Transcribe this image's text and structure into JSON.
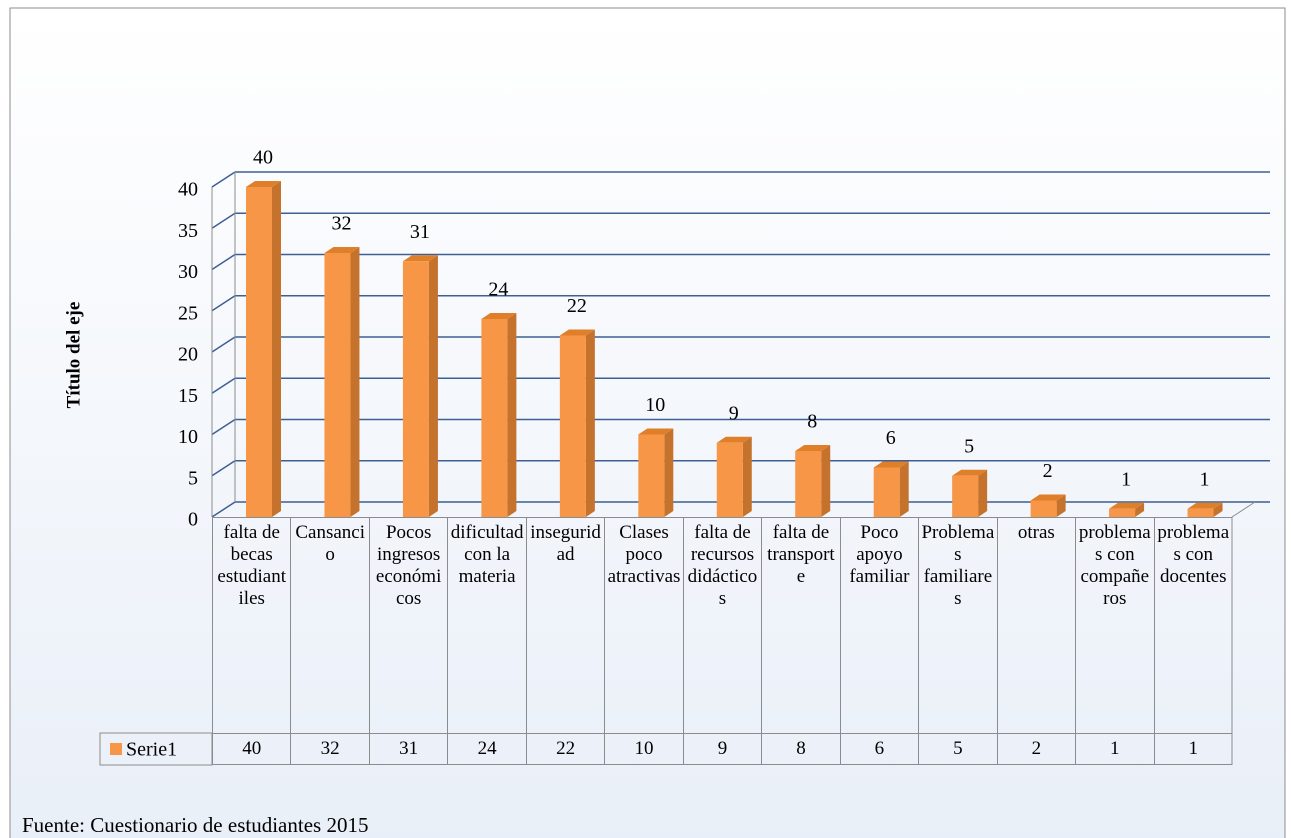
{
  "chart_data": {
    "type": "bar",
    "yaxis_title": "Título del eje",
    "categories": [
      "falta de becas estudiantiles",
      "Cansancio",
      "Pocos ingresos económicos",
      "dificultad con la materia",
      "inseguridad",
      "Clases poco atractivas",
      "falta de recursos didácticos",
      "falta de transporte",
      "Poco apoyo familiar",
      "Problemas familiares",
      "otras",
      "problemas con compañeros",
      "problemas con docentes"
    ],
    "series": [
      {
        "name": "Serie1",
        "color": "#f79646",
        "values": [
          40,
          32,
          31,
          24,
          22,
          10,
          9,
          8,
          6,
          5,
          2,
          1,
          1
        ]
      }
    ],
    "ylim": [
      0,
      40
    ],
    "yticks": [
      0,
      5,
      10,
      15,
      20,
      25,
      30,
      35,
      40
    ],
    "grid": true,
    "source": "Fuente:  Cuestionario de estudiantes  2015"
  }
}
